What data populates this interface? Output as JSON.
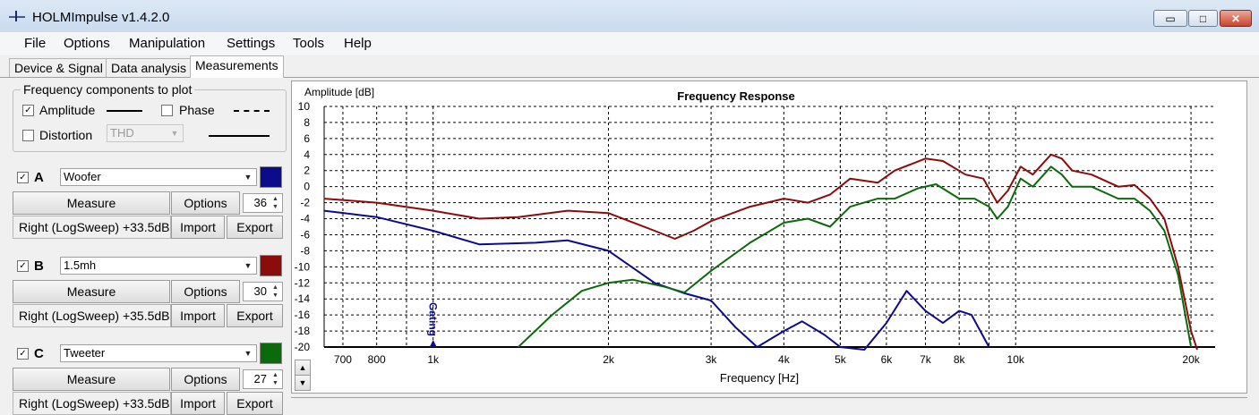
{
  "window": {
    "title": "HOLMImpulse  v1.4.2.0",
    "minimize_glyph": "▭",
    "maximize_glyph": "□",
    "close_glyph": "✕"
  },
  "menu": [
    "File",
    "Options",
    "Manipulation",
    "Settings",
    "Tools",
    "Help"
  ],
  "tabs": [
    {
      "label": "Device & Signal",
      "active": false
    },
    {
      "label": "Data analysis",
      "active": false
    },
    {
      "label": "Measurements",
      "active": true
    }
  ],
  "components": {
    "legend": "Frequency components to plot",
    "amplitude": {
      "label": "Amplitude",
      "checked": true
    },
    "phase": {
      "label": "Phase",
      "checked": false
    },
    "distortion": {
      "label": "Distortion",
      "checked": false,
      "selected": "THD"
    }
  },
  "channels": [
    {
      "letter": "A",
      "checked": true,
      "name": "Woofer",
      "color": "#0b0b8c",
      "measure": "Measure",
      "options": "Options",
      "smoothing": "36",
      "info": "Right (LogSweep) +33.5dB",
      "import": "Import",
      "export": "Export"
    },
    {
      "letter": "B",
      "checked": true,
      "name": "1.5mh",
      "color": "#8c0b0b",
      "measure": "Measure",
      "options": "Options",
      "smoothing": "30",
      "info": "Right (LogSweep) +35.5dB",
      "import": "Import",
      "export": "Export"
    },
    {
      "letter": "C",
      "checked": true,
      "name": "Tweeter",
      "color": "#0b6b0b",
      "measure": "Measure",
      "options": "Options",
      "smoothing": "27",
      "info": "Right (LogSweep) +33.5dB",
      "import": "Import",
      "export": "Export"
    }
  ],
  "chart_data": {
    "type": "line",
    "title": "Frequency Response",
    "ylabel": "Amplitude [dB]",
    "xlabel": "Frequency [Hz]",
    "x_scale": "log",
    "xlim": [
      650,
      22000
    ],
    "ylim": [
      -20,
      10
    ],
    "y_ticks": [
      10,
      8,
      6,
      4,
      2,
      0,
      -2,
      -4,
      -6,
      -8,
      -10,
      -12,
      -14,
      -16,
      -18,
      -20
    ],
    "x_ticks": [
      {
        "value": 700,
        "label": "700"
      },
      {
        "value": 800,
        "label": "800"
      },
      {
        "value": 1000,
        "label": "1k"
      },
      {
        "value": 2000,
        "label": "2k"
      },
      {
        "value": 3000,
        "label": "3k"
      },
      {
        "value": 4000,
        "label": "4k"
      },
      {
        "value": 5000,
        "label": "5k"
      },
      {
        "value": 6000,
        "label": "6k"
      },
      {
        "value": 7000,
        "label": "7k"
      },
      {
        "value": 8000,
        "label": "8k"
      },
      {
        "value": 10000,
        "label": "10k"
      },
      {
        "value": 20000,
        "label": "20k"
      }
    ],
    "grid": true,
    "annotation": {
      "text": "Gating",
      "freq": 1000
    },
    "series": [
      {
        "name": "Woofer",
        "color": "#0b0b8c",
        "points": [
          [
            650,
            -3
          ],
          [
            800,
            -3.8
          ],
          [
            1000,
            -5.5
          ],
          [
            1200,
            -7.2
          ],
          [
            1500,
            -7
          ],
          [
            1700,
            -6.7
          ],
          [
            2000,
            -8
          ],
          [
            2400,
            -12
          ],
          [
            2700,
            -13.3
          ],
          [
            3000,
            -14.2
          ],
          [
            3300,
            -17.5
          ],
          [
            3600,
            -20
          ],
          [
            4000,
            -18
          ],
          [
            4300,
            -16.8
          ],
          [
            4700,
            -18.5
          ],
          [
            5000,
            -20
          ],
          [
            5500,
            -20.5
          ],
          [
            6000,
            -17
          ],
          [
            6500,
            -13
          ],
          [
            7000,
            -15.5
          ],
          [
            7500,
            -17
          ],
          [
            8000,
            -15.5
          ],
          [
            8400,
            -16
          ],
          [
            9000,
            -20
          ]
        ]
      },
      {
        "name": "1.5mh",
        "color": "#8c0b0b",
        "points": [
          [
            650,
            -1.5
          ],
          [
            800,
            -2
          ],
          [
            1000,
            -3
          ],
          [
            1200,
            -4
          ],
          [
            1400,
            -3.8
          ],
          [
            1700,
            -3
          ],
          [
            2000,
            -3.3
          ],
          [
            2400,
            -5.5
          ],
          [
            2600,
            -6.5
          ],
          [
            2800,
            -5.5
          ],
          [
            3000,
            -4.3
          ],
          [
            3500,
            -2.5
          ],
          [
            4000,
            -1.5
          ],
          [
            4400,
            -2
          ],
          [
            4800,
            -1
          ],
          [
            5200,
            1
          ],
          [
            5800,
            0.5
          ],
          [
            6200,
            2
          ],
          [
            7000,
            3.5
          ],
          [
            7500,
            3.2
          ],
          [
            8200,
            1.5
          ],
          [
            8800,
            1
          ],
          [
            9300,
            -2
          ],
          [
            9700,
            -0.5
          ],
          [
            10200,
            2.5
          ],
          [
            10700,
            1.5
          ],
          [
            11500,
            4
          ],
          [
            12000,
            3.5
          ],
          [
            12500,
            2
          ],
          [
            13500,
            1.5
          ],
          [
            15000,
            0
          ],
          [
            16000,
            0.2
          ],
          [
            17000,
            -1.5
          ],
          [
            18000,
            -4
          ],
          [
            19000,
            -10
          ],
          [
            20000,
            -18
          ],
          [
            20500,
            -20.5
          ]
        ]
      },
      {
        "name": "Tweeter",
        "color": "#0b6b0b",
        "points": [
          [
            1400,
            -20
          ],
          [
            1600,
            -16
          ],
          [
            1800,
            -13
          ],
          [
            2000,
            -12
          ],
          [
            2200,
            -11.6
          ],
          [
            2500,
            -12.5
          ],
          [
            2700,
            -13.2
          ],
          [
            3000,
            -10.5
          ],
          [
            3500,
            -7
          ],
          [
            4000,
            -4.5
          ],
          [
            4400,
            -4
          ],
          [
            4800,
            -5
          ],
          [
            5200,
            -2.5
          ],
          [
            5800,
            -1.5
          ],
          [
            6200,
            -1.5
          ],
          [
            6800,
            -0.2
          ],
          [
            7300,
            0.3
          ],
          [
            8000,
            -1.5
          ],
          [
            8500,
            -1.5
          ],
          [
            9000,
            -2.5
          ],
          [
            9300,
            -4
          ],
          [
            9700,
            -2.5
          ],
          [
            10200,
            1
          ],
          [
            10700,
            0
          ],
          [
            11500,
            2.5
          ],
          [
            12000,
            1.5
          ],
          [
            12500,
            0
          ],
          [
            13500,
            0
          ],
          [
            15000,
            -1.5
          ],
          [
            16000,
            -1.5
          ],
          [
            17000,
            -3
          ],
          [
            18000,
            -5.5
          ],
          [
            19000,
            -11
          ],
          [
            20000,
            -20
          ]
        ]
      }
    ]
  }
}
